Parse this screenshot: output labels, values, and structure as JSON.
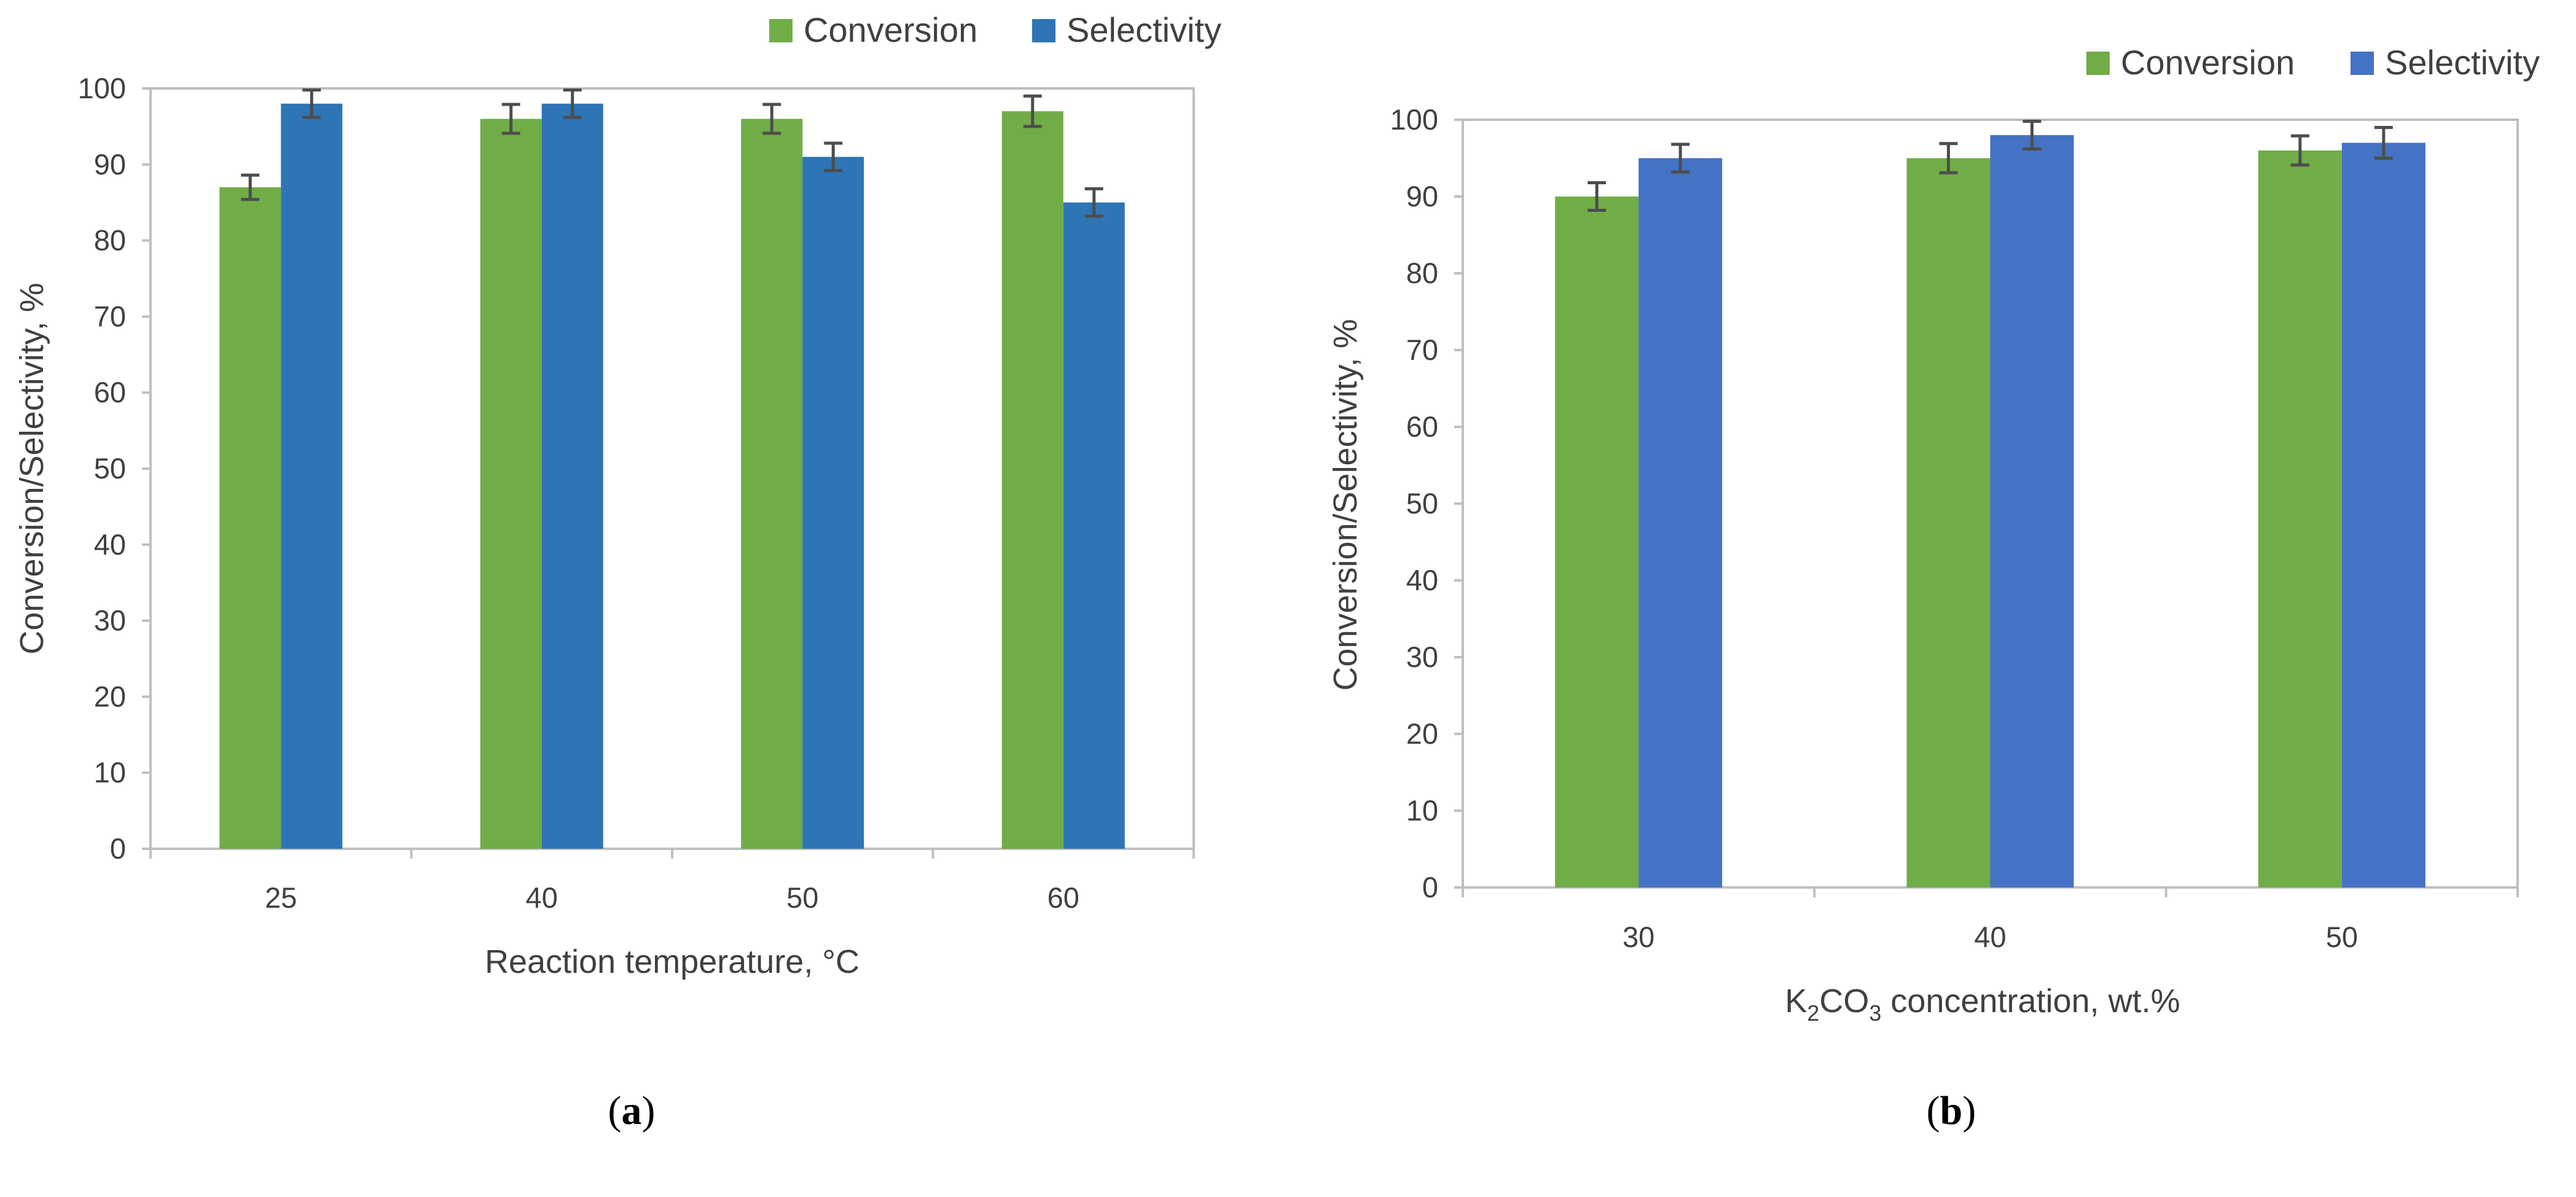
{
  "chart_data": [
    {
      "id": "a",
      "type": "bar",
      "panel_label": "a",
      "xlabel": "Reaction temperature,  °C",
      "ylabel": "Conversion/Selectivity, %",
      "categories": [
        "25",
        "40",
        "50",
        "60"
      ],
      "ylim": [
        0,
        100
      ],
      "yticks": [
        0,
        10,
        20,
        30,
        40,
        50,
        60,
        70,
        80,
        90,
        100
      ],
      "legend_position": "top-right",
      "grid": false,
      "series": [
        {
          "name": "Conversion",
          "color": "#70ad47",
          "values": [
            87,
            96,
            96,
            97
          ],
          "error": [
            1.6,
            1.9,
            1.9,
            2.0
          ]
        },
        {
          "name": "Selectivity",
          "color": "#2e75b6",
          "values": [
            98,
            98,
            91,
            85
          ],
          "error": [
            1.8,
            1.8,
            1.8,
            1.8
          ]
        }
      ]
    },
    {
      "id": "b",
      "type": "bar",
      "panel_label": "b",
      "xlabel_parts": {
        "pre": "K",
        "sub1": "2",
        "mid": "CO",
        "sub2": "3",
        "post": " concentration, wt.%"
      },
      "ylabel": "Conversion/Selectivity, %",
      "categories": [
        "30",
        "40",
        "50"
      ],
      "ylim": [
        0,
        100
      ],
      "yticks": [
        0,
        10,
        20,
        30,
        40,
        50,
        60,
        70,
        80,
        90,
        100
      ],
      "legend_position": "top-right",
      "grid": false,
      "series": [
        {
          "name": "Conversion",
          "color": "#70ad47",
          "values": [
            90,
            95,
            96
          ],
          "error": [
            1.8,
            1.9,
            1.9
          ]
        },
        {
          "name": "Selectivity",
          "color": "#4472c4",
          "values": [
            95,
            98,
            97
          ],
          "error": [
            1.8,
            1.8,
            2.0
          ]
        }
      ]
    }
  ]
}
